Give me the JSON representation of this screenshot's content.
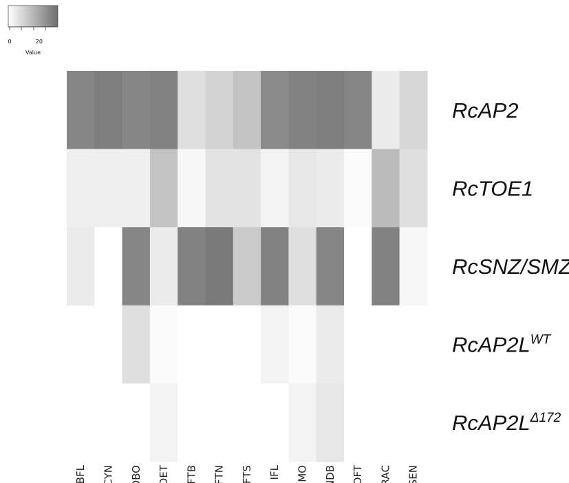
{
  "chart_data": {
    "type": "heatmap",
    "columns": [
      "BFL",
      "CYN",
      "DBO",
      "DET",
      "FTB",
      "FTN",
      "FTS",
      "IFL",
      "IMO",
      "NDB",
      "OFT",
      "RAC",
      "SEN"
    ],
    "rows": [
      {
        "base": "RcAP2",
        "sup": ""
      },
      {
        "base": "RcTOE1",
        "sup": ""
      },
      {
        "base": "RcSNZ/SMZ",
        "sup": ""
      },
      {
        "base": "RcAP2L",
        "sup": "WT"
      },
      {
        "base": "RcAP2L",
        "sup": "Δ172"
      }
    ],
    "values": [
      [
        30,
        32,
        30,
        31,
        8,
        11,
        15,
        29,
        31,
        32,
        30,
        5,
        10
      ],
      [
        4,
        4,
        4,
        15,
        2,
        7,
        7,
        3,
        6,
        5,
        1,
        17,
        8
      ],
      [
        5,
        0,
        30,
        5,
        31,
        33,
        13,
        31,
        8,
        30,
        0,
        31,
        2
      ],
      [
        0,
        0,
        8,
        1,
        0,
        0,
        0,
        3,
        1,
        5,
        0,
        0,
        0
      ],
      [
        0,
        0,
        0,
        3,
        0,
        0,
        0,
        0,
        3,
        6,
        0,
        0,
        0
      ]
    ],
    "color_scale": {
      "low": "#ffffff",
      "high": "#6e6e6e",
      "min": 0,
      "max": 36
    },
    "legend": {
      "title": "Value",
      "ticks": [
        0,
        20
      ],
      "placement": "top-left"
    },
    "title": "",
    "xlabel": "",
    "ylabel": ""
  }
}
